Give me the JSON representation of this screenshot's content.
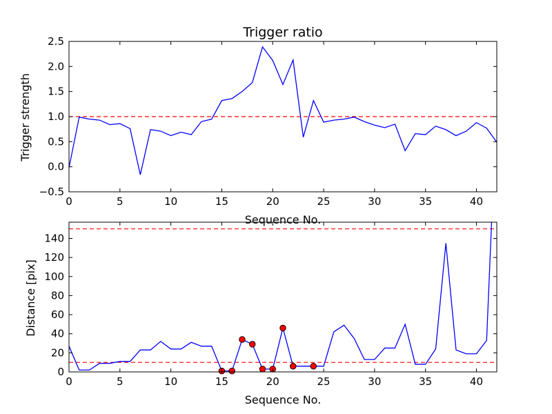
{
  "chart_data": [
    {
      "type": "line",
      "title": "Trigger ratio",
      "xlabel": "Sequence No.",
      "ylabel": "Trigger strength",
      "xlim": [
        0,
        42
      ],
      "ylim": [
        -0.5,
        2.5
      ],
      "xticks": [
        0,
        5,
        10,
        15,
        20,
        25,
        30,
        35,
        40
      ],
      "xtick_labels": [
        "0",
        "5",
        "10",
        "15",
        "20",
        "25",
        "30",
        "35",
        "40"
      ],
      "yticks": [
        -0.5,
        0.0,
        0.5,
        1.0,
        1.5,
        2.0,
        2.5
      ],
      "ytick_labels": [
        "−0.5",
        "0.0",
        "0.5",
        "1.0",
        "1.5",
        "2.0",
        "2.5"
      ],
      "grid": false,
      "series": [
        {
          "color": "#0000ff",
          "x": [
            0,
            1,
            2,
            3,
            4,
            5,
            6,
            7,
            8,
            9,
            10,
            11,
            12,
            13,
            14,
            15,
            16,
            17,
            18,
            19,
            20,
            21,
            22,
            23,
            24,
            25,
            26,
            27,
            28,
            29,
            30,
            31,
            32,
            33,
            34,
            35,
            36,
            37,
            38,
            39,
            40,
            41,
            42
          ],
          "y": [
            -0.02,
            0.99,
            0.95,
            0.93,
            0.84,
            0.86,
            0.76,
            -0.16,
            0.74,
            0.71,
            0.62,
            0.69,
            0.64,
            0.9,
            0.95,
            1.32,
            1.36,
            1.5,
            1.68,
            2.39,
            2.12,
            1.64,
            2.13,
            0.59,
            1.32,
            0.89,
            0.93,
            0.95,
            0.99,
            0.9,
            0.83,
            0.78,
            0.85,
            0.32,
            0.66,
            0.64,
            0.81,
            0.74,
            0.62,
            0.71,
            0.88,
            0.77,
            0.49
          ]
        }
      ],
      "hlines": [
        {
          "y": 1.0,
          "color": "#ff0000",
          "style": "dashed"
        }
      ]
    },
    {
      "type": "line",
      "title": "",
      "xlabel": "Sequence No.",
      "ylabel": "Distance [pix]",
      "xlim": [
        0,
        42
      ],
      "ylim": [
        0,
        157
      ],
      "xticks": [
        0,
        5,
        10,
        15,
        20,
        25,
        30,
        35,
        40
      ],
      "xtick_labels": [
        "0",
        "5",
        "10",
        "15",
        "20",
        "25",
        "30",
        "35",
        "40"
      ],
      "yticks": [
        0,
        20,
        40,
        60,
        80,
        100,
        120,
        140
      ],
      "ytick_labels": [
        "0",
        "20",
        "40",
        "60",
        "80",
        "100",
        "120",
        "140"
      ],
      "grid": false,
      "series": [
        {
          "color": "#0000ff",
          "x": [
            0,
            1,
            2,
            3,
            4,
            5,
            6,
            7,
            8,
            9,
            10,
            11,
            12,
            13,
            14,
            15,
            16,
            17,
            18,
            19,
            20,
            21,
            22,
            23,
            24,
            25,
            26,
            27,
            28,
            29,
            30,
            31,
            32,
            33,
            34,
            35,
            36,
            37,
            38,
            39,
            40,
            41,
            41.5
          ],
          "y": [
            27,
            2,
            2,
            9,
            9,
            11,
            11,
            23,
            23,
            32,
            24,
            24,
            31,
            27,
            27,
            1,
            1,
            34,
            29,
            3,
            3,
            46,
            6,
            6,
            6,
            6,
            42,
            49,
            35,
            13,
            13,
            25,
            25,
            50,
            8,
            8,
            24,
            135,
            23,
            19,
            19,
            33,
            160
          ]
        }
      ],
      "markers": {
        "color": "#ff0000",
        "x": [
          15,
          16,
          17,
          18,
          19,
          20,
          21,
          22,
          24
        ],
        "y": [
          1,
          1,
          34,
          29,
          3,
          3,
          46,
          6,
          6
        ]
      },
      "hlines": [
        {
          "y": 10,
          "color": "#ff0000",
          "style": "dashed"
        },
        {
          "y": 150,
          "color": "#ff0000",
          "style": "dashed"
        }
      ]
    }
  ]
}
